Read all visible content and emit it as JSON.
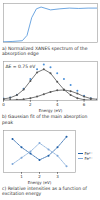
{
  "chart_data": [
    {
      "type": "line",
      "title": "a) Normalized XANES spectrum of the absorption edge",
      "x": [
        0,
        1,
        2,
        2.5,
        3,
        3.5,
        4,
        5,
        6,
        7,
        8,
        9,
        10
      ],
      "values": [
        0.02,
        0.03,
        0.05,
        0.2,
        0.7,
        0.95,
        1.0,
        0.92,
        0.95,
        0.97,
        0.96,
        0.97,
        0.97
      ],
      "color": "#4a90d9",
      "xlim": [
        0,
        10
      ],
      "ylim": [
        0,
        1.1
      ],
      "xticks": [],
      "yticks": [],
      "tick_labels": false
    },
    {
      "type": "scatter",
      "title": "b) Gaussian fit of the main absorption peak",
      "annotation": "ΔE = 0.75 eV",
      "x_label": "Energy (eV)",
      "x": [
        0,
        0.5,
        1,
        1.5,
        2,
        2.5,
        3,
        3.5,
        4,
        4.5,
        5,
        5.5,
        6,
        6.5,
        7
      ],
      "values": [
        0.05,
        0.08,
        0.15,
        0.3,
        0.55,
        0.8,
        0.92,
        0.85,
        0.7,
        0.55,
        0.4,
        0.25,
        0.12,
        0.06,
        0.03
      ],
      "color": "#4a90d9",
      "marker": "circle",
      "series": [
        {
          "type": "line",
          "color": "#555555",
          "values": [
            0.04,
            0.07,
            0.14,
            0.28,
            0.5,
            0.72,
            0.8,
            0.7,
            0.48,
            0.28,
            0.14,
            0.06,
            0.02,
            0.01,
            0.0
          ]
        },
        {
          "type": "line",
          "color": "#555555",
          "values": [
            0.01,
            0.01,
            0.02,
            0.03,
            0.06,
            0.1,
            0.16,
            0.22,
            0.26,
            0.27,
            0.24,
            0.18,
            0.1,
            0.05,
            0.03
          ]
        }
      ],
      "xlim": [
        0,
        7
      ],
      "ylim": [
        0,
        1
      ],
      "xticks": [
        0,
        2,
        4,
        6
      ],
      "yticks": [],
      "tick_labels": "x"
    },
    {
      "type": "line",
      "title": "c) Relative intensities as a function of excitation energy",
      "x_label": "Energy (eV)",
      "x": [
        0.5,
        1,
        1.5,
        2,
        2.5,
        3,
        3.5
      ],
      "series": [
        {
          "name": "Fe²⁺",
          "color": "#1f5fa8",
          "values": [
            0.8,
            0.6,
            0.45,
            0.3,
            0.4,
            0.6,
            0.85
          ]
        },
        {
          "name": "Fe³⁺",
          "color": "#7fa8d8",
          "values": [
            0.2,
            0.35,
            0.5,
            0.7,
            0.55,
            0.4,
            0.15
          ]
        }
      ],
      "marker": "circle",
      "line_style": "dotted",
      "legend": "right",
      "xlim": [
        0,
        4
      ],
      "ylim": [
        0,
        1
      ],
      "xticks": [
        1,
        2,
        3
      ],
      "yticks": [],
      "tick_labels": "x"
    }
  ]
}
